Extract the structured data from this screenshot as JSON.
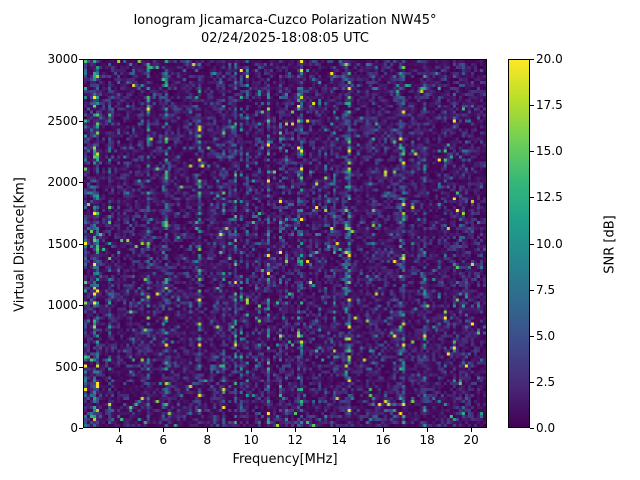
{
  "chart_data": {
    "type": "heatmap",
    "title": "Ionogram Jicamarca-Cuzco Polarization NW45°",
    "subtitle": "02/24/2025-18:08:05 UTC",
    "xlabel": "Frequency[MHz]",
    "ylabel": "Virtual Distance[Km]",
    "xlim": [
      2.35,
      20.72
    ],
    "ylim": [
      0,
      3000
    ],
    "x_ticks": [
      {
        "value": 4,
        "label": "4"
      },
      {
        "value": 6,
        "label": "6"
      },
      {
        "value": 8,
        "label": "8"
      },
      {
        "value": 10,
        "label": "10"
      },
      {
        "value": 12,
        "label": "12"
      },
      {
        "value": 14,
        "label": "14"
      },
      {
        "value": 16,
        "label": "16"
      },
      {
        "value": 18,
        "label": "18"
      },
      {
        "value": 20,
        "label": "20"
      }
    ],
    "y_ticks": [
      {
        "value": 0,
        "label": "0"
      },
      {
        "value": 500,
        "label": "500"
      },
      {
        "value": 1000,
        "label": "1000"
      },
      {
        "value": 1500,
        "label": "1500"
      },
      {
        "value": 2000,
        "label": "2000"
      },
      {
        "value": 2500,
        "label": "2500"
      },
      {
        "value": 3000,
        "label": "3000"
      }
    ],
    "colorbar": {
      "label": "SNR [dB]",
      "min": 0,
      "max": 20,
      "ticks": [
        {
          "value": 0,
          "label": "0.0"
        },
        {
          "value": 2.5,
          "label": "2.5"
        },
        {
          "value": 5,
          "label": "5.0"
        },
        {
          "value": 7.5,
          "label": "7.5"
        },
        {
          "value": 10,
          "label": "10.0"
        },
        {
          "value": 12.5,
          "label": "12.5"
        },
        {
          "value": 15,
          "label": "15.0"
        },
        {
          "value": 17.5,
          "label": "17.5"
        },
        {
          "value": 20,
          "label": "20.0"
        }
      ]
    },
    "colormap": "viridis",
    "colormap_anchors": [
      "#440154",
      "#482878",
      "#3e4989",
      "#31688e",
      "#26828e",
      "#1f9e89",
      "#35b779",
      "#6ece58",
      "#b5de2b",
      "#fde725"
    ],
    "noise_model": {
      "description": "speckled background noise with vertical streaks, mostly 0-3 dB, sparse bright points up to 20 dB",
      "seed": 20250224,
      "cols": 134,
      "rows": 123,
      "exp_scale": 1.6,
      "bright_prob": 0.012,
      "streak_prob": 0.16
    }
  }
}
